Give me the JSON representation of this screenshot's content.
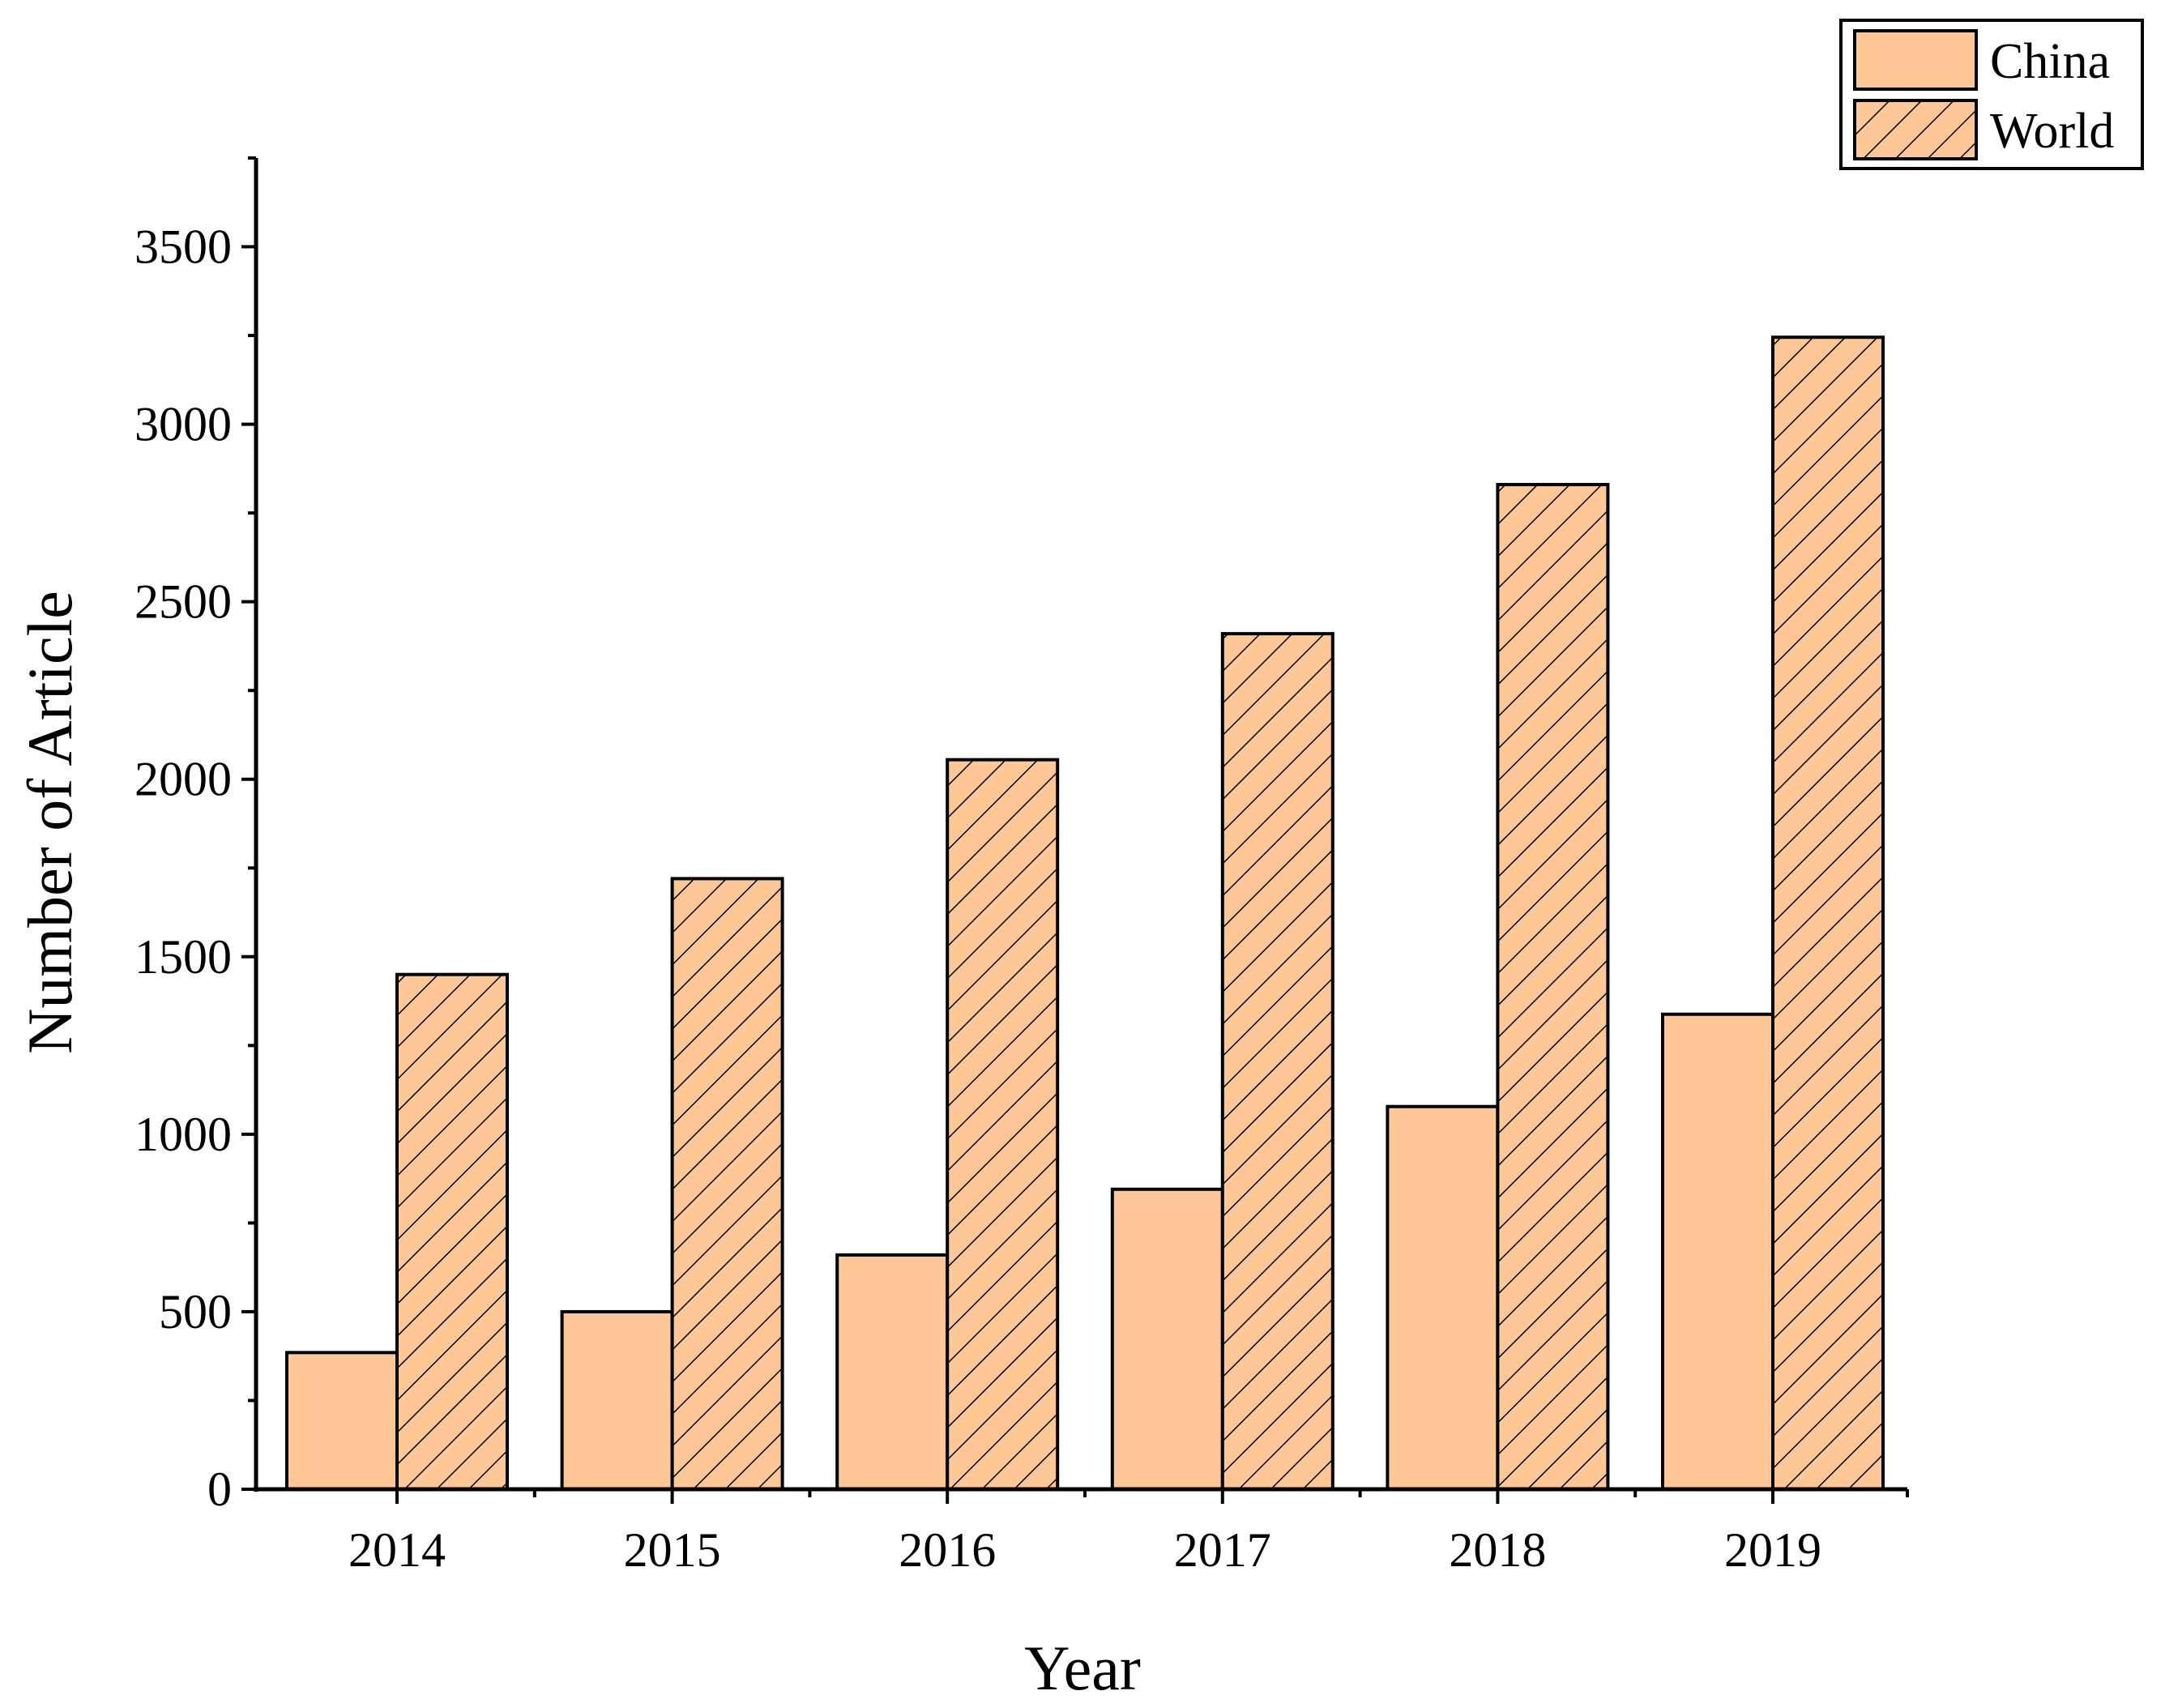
{
  "chart_data": {
    "type": "bar",
    "title": "",
    "xlabel": "Year",
    "ylabel": "Number of Article",
    "categories": [
      "2014",
      "2015",
      "2016",
      "2017",
      "2018",
      "2019"
    ],
    "series": [
      {
        "name": "China",
        "values": [
          385,
          500,
          660,
          845,
          1078,
          1338
        ],
        "pattern": "solid",
        "color": "#FEC896"
      },
      {
        "name": "World",
        "values": [
          1450,
          1720,
          2055,
          2410,
          2830,
          3245
        ],
        "pattern": "hatch",
        "color": "#FEC896"
      }
    ],
    "ylim": [
      0,
      3750
    ],
    "yticks": [
      0,
      500,
      1000,
      1500,
      2000,
      2500,
      3000,
      3500
    ],
    "ytick_labels": [
      "0",
      "500",
      "1000",
      "1500",
      "2000",
      "2500",
      "3000",
      "3500"
    ],
    "grid": false,
    "legend_position": "top-right"
  }
}
